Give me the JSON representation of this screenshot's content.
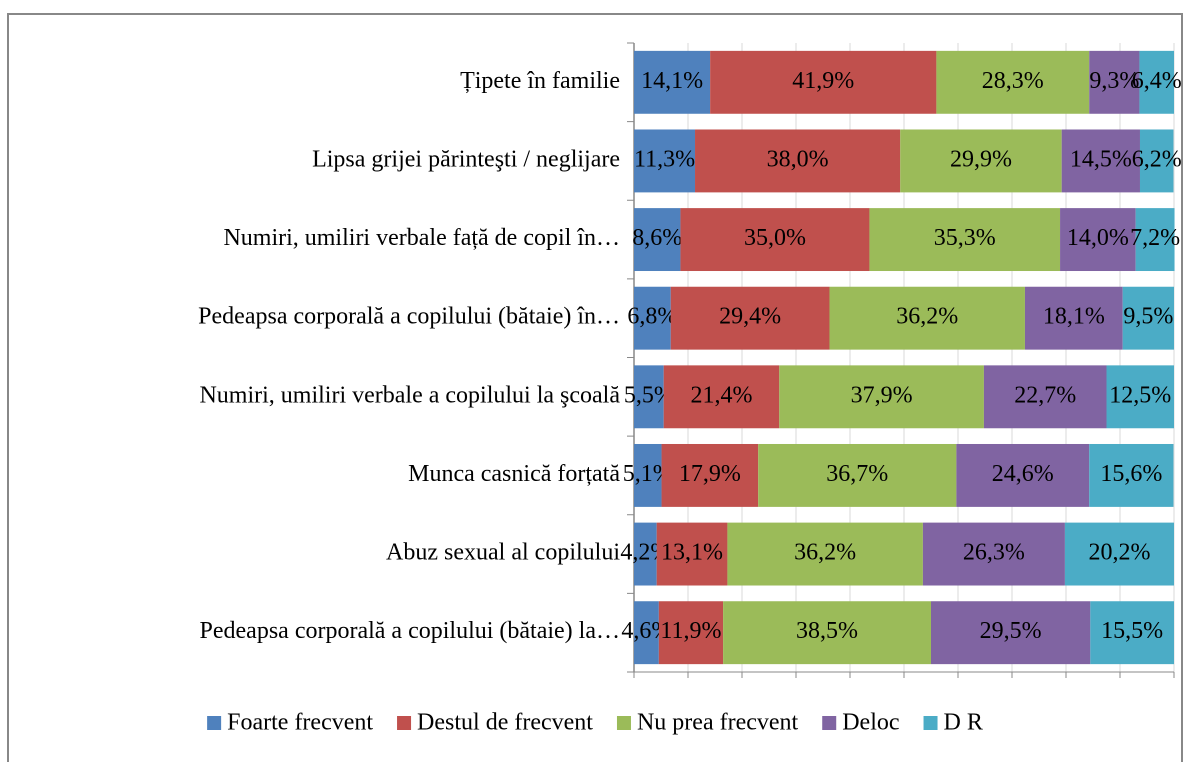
{
  "chart_data": {
    "type": "stacked_bar_horizontal",
    "categories": [
      "Țipete în familie",
      "Lipsa grijei părinteşti / neglijare",
      "Numiri, umiliri verbale față de copil în…",
      "Pedeapsa corporală a copilului (bătaie) în…",
      "Numiri, umiliri verbale a copilului la şcoală",
      "Munca casnică forțată",
      "Abuz sexual al copilului",
      "Pedeapsa corporală a copilului (bătaie) la…"
    ],
    "series": [
      {
        "name": "Foarte frecvent",
        "color": "#4f81bd",
        "values": [
          14.1,
          11.3,
          8.6,
          6.8,
          5.5,
          5.1,
          4.2,
          4.6
        ],
        "value_labels": [
          "14,1%",
          "11,3%",
          "8,6%",
          "6,8%",
          "5,5%",
          "5,1%",
          "4,2%",
          "4,6%"
        ]
      },
      {
        "name": "Destul de frecvent",
        "color": "#c0504d",
        "values": [
          41.9,
          38.0,
          35.0,
          29.4,
          21.4,
          17.9,
          13.1,
          11.9
        ],
        "value_labels": [
          "41,9%",
          "38,0%",
          "35,0%",
          "29,4%",
          "21,4%",
          "17,9%",
          "13,1%",
          "11,9%"
        ]
      },
      {
        "name": "Nu prea frecvent",
        "color": "#9bbb59",
        "values": [
          28.3,
          29.9,
          35.3,
          36.2,
          37.9,
          36.7,
          36.2,
          38.5
        ],
        "value_labels": [
          "28,3%",
          "29,9%",
          "35,3%",
          "36,2%",
          "37,9%",
          "36,7%",
          "36,2%",
          "38,5%"
        ]
      },
      {
        "name": "Deloc",
        "color": "#8064a2",
        "values": [
          9.3,
          14.5,
          14.0,
          18.1,
          22.7,
          24.6,
          26.3,
          29.5
        ],
        "value_labels": [
          "9,3%",
          "14,5%",
          "14,0%",
          "18,1%",
          "22,7%",
          "24,6%",
          "26,3%",
          "29,5%"
        ]
      },
      {
        "name": "D R",
        "color": "#4bacc6",
        "values": [
          6.4,
          6.2,
          7.2,
          9.5,
          12.5,
          15.6,
          20.2,
          15.5
        ],
        "value_labels": [
          "6,4%",
          "6,2%",
          "7,2%",
          "9,5%",
          "12,5%",
          "15,6%",
          "20,2%",
          "15,5%"
        ]
      }
    ],
    "xlim": [
      0,
      100
    ],
    "xticks": [
      0,
      10,
      20,
      30,
      40,
      50,
      60,
      70,
      80,
      90,
      100
    ],
    "grid": true,
    "legend": "bottom"
  }
}
